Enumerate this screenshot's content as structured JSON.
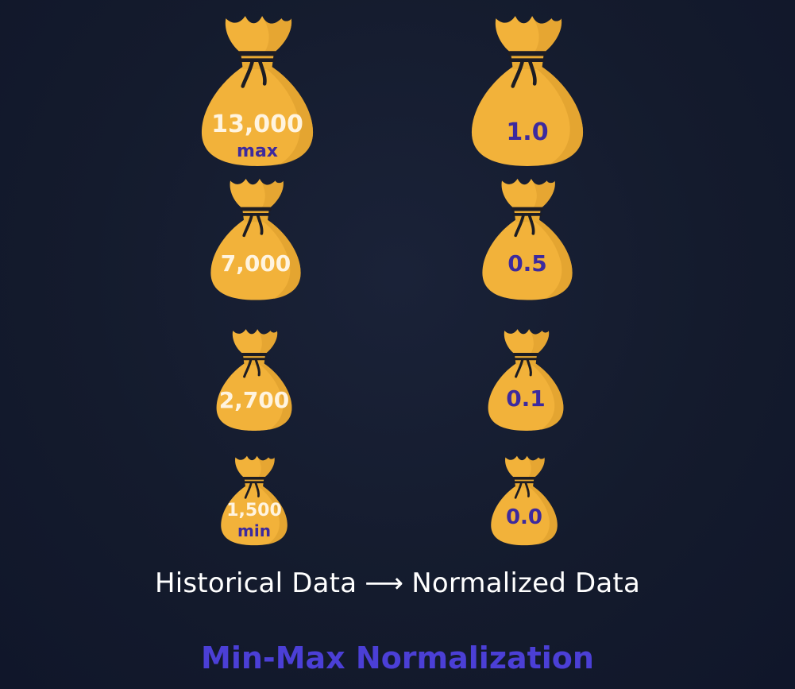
{
  "historical": {
    "bag1": {
      "value": "13,000",
      "tag": "max"
    },
    "bag2": {
      "value": "7,000"
    },
    "bag3": {
      "value": "2,700"
    },
    "bag4": {
      "value": "1,500",
      "tag": "min"
    }
  },
  "normalized": {
    "bag1": {
      "value": "1.0"
    },
    "bag2": {
      "value": "0.5"
    },
    "bag3": {
      "value": "0.1"
    },
    "bag4": {
      "value": "0.0"
    }
  },
  "caption": {
    "left": "Historical Data",
    "arrow": "⟶",
    "right": "Normalized Data"
  },
  "title": "Min-Max Normalization",
  "colors": {
    "background": "#141b2d",
    "bag": "#f2b23a",
    "bag_shade": "#d99a2a",
    "rope": "#1c1c24",
    "value_light": "#fff4e0",
    "value_dark": "#3d2a9e",
    "title": "#4b3fd6"
  },
  "icons": {
    "bag": "money-bag-icon"
  }
}
